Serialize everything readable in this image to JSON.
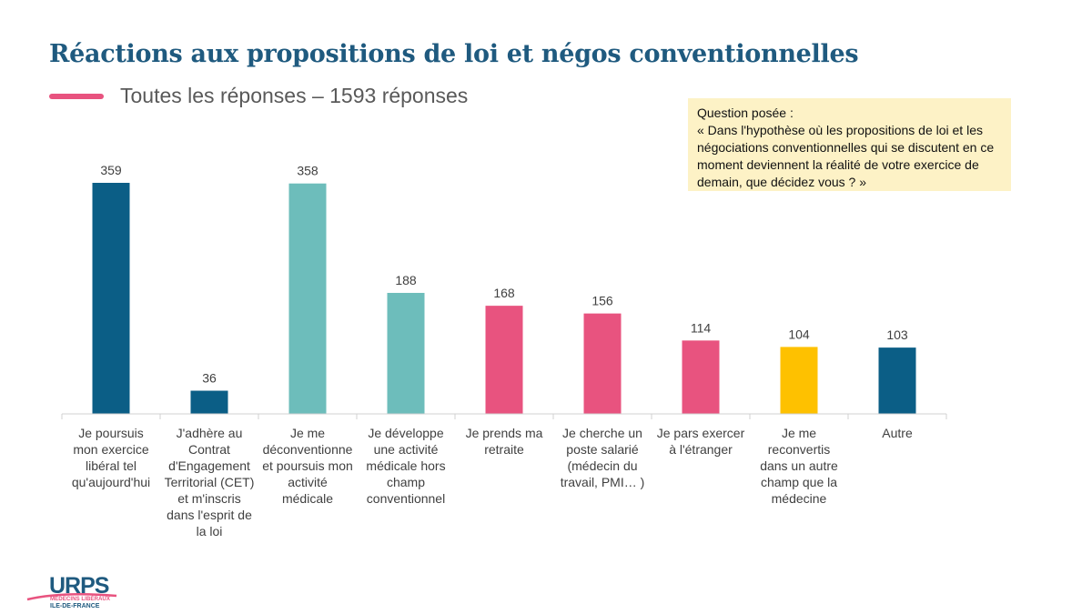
{
  "title": "Réactions aux propositions de loi et négos conventionnelles",
  "question": {
    "heading": "Question posée :",
    "text": "« Dans l'hypothèse où les propositions de loi et les négociations conventionnelles qui se discutent en ce moment deviennent la réalité de votre exercice de demain, que décidez vous ? »"
  },
  "logo": {
    "name": "URPS",
    "sub1": "MÉDECINS LIBÉRAUX",
    "sub2": "ILE-DE-FRANCE"
  },
  "colors": {
    "dark_blue": "#0b5e86",
    "teal": "#6dbdbb",
    "pink": "#e8537f",
    "yellow": "#fec100",
    "title": "#1f5a7f"
  },
  "chart_data": {
    "type": "bar",
    "legend": [
      {
        "label": "Toutes les réponses  – 1593 réponses",
        "color": "#e8537f"
      }
    ],
    "categories": [
      [
        "Je poursuis",
        "mon exercice",
        "libéral tel",
        "qu'aujourd'hui"
      ],
      [
        "J'adhère au",
        "Contrat",
        "d'Engagement",
        "Territorial (CET)",
        "et m'inscris",
        "dans l'esprit de",
        "la loi"
      ],
      [
        "Je me",
        "déconventionne",
        "et poursuis mon",
        "activité",
        "médicale"
      ],
      [
        "Je développe",
        "une activité",
        "médicale hors",
        "champ",
        "conventionnel"
      ],
      [
        "Je prends ma",
        "retraite"
      ],
      [
        "Je cherche un",
        "poste salarié",
        "(médecin du",
        "travail, PMI… )"
      ],
      [
        "Je pars exercer",
        "à l'étranger"
      ],
      [
        "Je me",
        "reconvertis",
        "dans un autre",
        "champ que la",
        "médecine"
      ],
      [
        "Autre"
      ]
    ],
    "values": [
      359,
      36,
      358,
      188,
      168,
      156,
      114,
      104,
      103
    ],
    "bar_colors": [
      "#0b5e86",
      "#0b5e86",
      "#6dbdbb",
      "#6dbdbb",
      "#e8537f",
      "#e8537f",
      "#e8537f",
      "#fec100",
      "#0b5e86"
    ],
    "ylim": [
      0,
      380
    ],
    "grid": false
  }
}
